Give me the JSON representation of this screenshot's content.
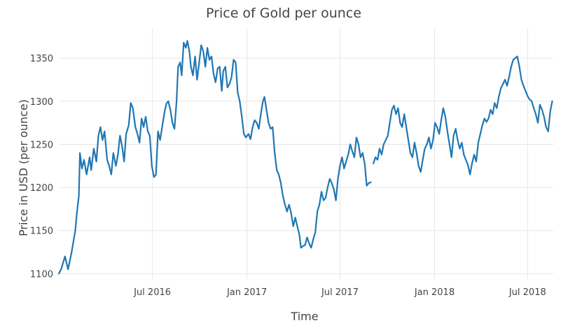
{
  "chart_data": {
    "type": "line",
    "title": "Price of Gold per ounce",
    "xlabel": "Time",
    "ylabel": "Price in USD (per ounce)",
    "xlim": [
      "2016-01-01",
      "2018-08-20"
    ],
    "ylim": [
      1093,
      1385
    ],
    "grid": true,
    "legend": "none",
    "x_ticks": [
      {
        "date": "2016-07-01",
        "label": "Jul 2016"
      },
      {
        "date": "2017-01-01",
        "label": "Jan 2017"
      },
      {
        "date": "2017-07-01",
        "label": "Jul 2017"
      },
      {
        "date": "2018-01-01",
        "label": "Jan 2018"
      },
      {
        "date": "2018-07-01",
        "label": "Jul 2018"
      }
    ],
    "y_ticks": [
      1100,
      1150,
      1200,
      1250,
      1300,
      1350
    ],
    "series": [
      {
        "color": "#1f77b4",
        "points": [
          [
            "2016-01-01",
            1100
          ],
          [
            "2016-01-06",
            1106
          ],
          [
            "2016-01-13",
            1120
          ],
          [
            "2016-01-19",
            1105
          ],
          [
            "2016-01-26",
            1125
          ],
          [
            "2016-02-02",
            1150
          ],
          [
            "2016-02-05",
            1170
          ],
          [
            "2016-02-09",
            1190
          ],
          [
            "2016-02-11",
            1240
          ],
          [
            "2016-02-15",
            1222
          ],
          [
            "2016-02-19",
            1232
          ],
          [
            "2016-02-24",
            1215
          ],
          [
            "2016-03-01",
            1235
          ],
          [
            "2016-03-04",
            1220
          ],
          [
            "2016-03-09",
            1245
          ],
          [
            "2016-03-14",
            1230
          ],
          [
            "2016-03-18",
            1260
          ],
          [
            "2016-03-22",
            1270
          ],
          [
            "2016-03-26",
            1255
          ],
          [
            "2016-03-30",
            1265
          ],
          [
            "2016-04-04",
            1232
          ],
          [
            "2016-04-08",
            1225
          ],
          [
            "2016-04-12",
            1215
          ],
          [
            "2016-04-16",
            1240
          ],
          [
            "2016-04-21",
            1225
          ],
          [
            "2016-04-25",
            1238
          ],
          [
            "2016-04-29",
            1260
          ],
          [
            "2016-05-03",
            1248
          ],
          [
            "2016-05-07",
            1230
          ],
          [
            "2016-05-11",
            1262
          ],
          [
            "2016-05-16",
            1272
          ],
          [
            "2016-05-20",
            1298
          ],
          [
            "2016-05-24",
            1292
          ],
          [
            "2016-05-29",
            1270
          ],
          [
            "2016-06-02",
            1262
          ],
          [
            "2016-06-06",
            1252
          ],
          [
            "2016-06-10",
            1280
          ],
          [
            "2016-06-14",
            1270
          ],
          [
            "2016-06-18",
            1282
          ],
          [
            "2016-06-22",
            1265
          ],
          [
            "2016-06-26",
            1260
          ],
          [
            "2016-06-30",
            1225
          ],
          [
            "2016-07-04",
            1212
          ],
          [
            "2016-07-08",
            1215
          ],
          [
            "2016-07-12",
            1265
          ],
          [
            "2016-07-16",
            1255
          ],
          [
            "2016-07-20",
            1270
          ],
          [
            "2016-07-24",
            1285
          ],
          [
            "2016-07-28",
            1297
          ],
          [
            "2016-08-01",
            1300
          ],
          [
            "2016-08-05",
            1290
          ],
          [
            "2016-08-09",
            1275
          ],
          [
            "2016-08-13",
            1268
          ],
          [
            "2016-08-17",
            1300
          ],
          [
            "2016-08-20",
            1340
          ],
          [
            "2016-08-24",
            1345
          ],
          [
            "2016-08-27",
            1330
          ],
          [
            "2016-08-31",
            1368
          ],
          [
            "2016-09-04",
            1362
          ],
          [
            "2016-09-07",
            1370
          ],
          [
            "2016-09-11",
            1358
          ],
          [
            "2016-09-14",
            1340
          ],
          [
            "2016-09-18",
            1330
          ],
          [
            "2016-09-22",
            1352
          ],
          [
            "2016-09-26",
            1325
          ],
          [
            "2016-09-30",
            1345
          ],
          [
            "2016-10-04",
            1365
          ],
          [
            "2016-10-08",
            1358
          ],
          [
            "2016-10-12",
            1340
          ],
          [
            "2016-10-16",
            1362
          ],
          [
            "2016-10-20",
            1348
          ],
          [
            "2016-10-24",
            1352
          ],
          [
            "2016-10-28",
            1332
          ],
          [
            "2016-11-01",
            1322
          ],
          [
            "2016-11-05",
            1338
          ],
          [
            "2016-11-09",
            1340
          ],
          [
            "2016-11-13",
            1312
          ],
          [
            "2016-11-16",
            1335
          ],
          [
            "2016-11-20",
            1340
          ],
          [
            "2016-11-24",
            1316
          ],
          [
            "2016-11-28",
            1320
          ],
          [
            "2016-12-02",
            1328
          ],
          [
            "2016-12-06",
            1348
          ],
          [
            "2016-12-10",
            1345
          ],
          [
            "2016-12-14",
            1310
          ],
          [
            "2016-12-18",
            1300
          ],
          [
            "2016-12-22",
            1282
          ],
          [
            "2016-12-26",
            1262
          ],
          [
            "2016-12-30",
            1258
          ],
          [
            "2017-01-04",
            1262
          ],
          [
            "2017-01-08",
            1256
          ],
          [
            "2017-01-12",
            1270
          ],
          [
            "2017-01-16",
            1278
          ],
          [
            "2017-01-20",
            1275
          ],
          [
            "2017-01-24",
            1268
          ],
          [
            "2017-01-28",
            1285
          ],
          [
            "2017-02-01",
            1300
          ],
          [
            "2017-02-04",
            1305
          ],
          [
            "2017-02-08",
            1290
          ],
          [
            "2017-02-12",
            1275
          ],
          [
            "2017-02-16",
            1268
          ],
          [
            "2017-02-20",
            1270
          ],
          [
            "2017-02-24",
            1240
          ],
          [
            "2017-02-28",
            1220
          ],
          [
            "2017-03-04",
            1215
          ],
          [
            "2017-03-08",
            1205
          ],
          [
            "2017-03-12",
            1190
          ],
          [
            "2017-03-16",
            1180
          ],
          [
            "2017-03-20",
            1172
          ],
          [
            "2017-03-24",
            1180
          ],
          [
            "2017-03-28",
            1170
          ],
          [
            "2017-04-01",
            1155
          ],
          [
            "2017-04-05",
            1165
          ],
          [
            "2017-04-09",
            1155
          ],
          [
            "2017-04-13",
            1145
          ],
          [
            "2017-04-16",
            1130
          ],
          [
            "2017-04-20",
            1132
          ],
          [
            "2017-04-24",
            1133
          ],
          [
            "2017-04-28",
            1142
          ],
          [
            "2017-05-02",
            1135
          ],
          [
            "2017-05-06",
            1130
          ],
          [
            "2017-05-10",
            1140
          ],
          [
            "2017-05-14",
            1148
          ],
          [
            "2017-05-18",
            1172
          ],
          [
            "2017-05-22",
            1180
          ],
          [
            "2017-05-26",
            1195
          ],
          [
            "2017-05-30",
            1185
          ],
          [
            "2017-06-03",
            1188
          ],
          [
            "2017-06-07",
            1200
          ],
          [
            "2017-06-11",
            1210
          ],
          [
            "2017-06-15",
            1205
          ],
          [
            "2017-06-19",
            1198
          ],
          [
            "2017-06-23",
            1185
          ],
          [
            "2017-06-27",
            1210
          ],
          [
            "2017-07-01",
            1225
          ],
          [
            "2017-07-05",
            1235
          ],
          [
            "2017-07-09",
            1222
          ],
          [
            "2017-07-13",
            1230
          ],
          [
            "2017-07-17",
            1238
          ],
          [
            "2017-07-21",
            1250
          ],
          [
            "2017-07-25",
            1242
          ],
          [
            "2017-07-29",
            1235
          ],
          [
            "2017-08-02",
            1258
          ],
          [
            "2017-08-06",
            1250
          ],
          [
            "2017-08-10",
            1235
          ],
          [
            "2017-08-14",
            1240
          ],
          [
            "2017-08-18",
            1228
          ],
          [
            "2017-08-22",
            1202
          ],
          [
            "2017-08-26",
            1205
          ],
          [
            "2017-08-30",
            1206
          ],
          null,
          [
            "2017-09-04",
            1228
          ],
          [
            "2017-09-08",
            1235
          ],
          [
            "2017-09-12",
            1232
          ],
          [
            "2017-09-16",
            1245
          ],
          [
            "2017-09-20",
            1238
          ],
          [
            "2017-09-24",
            1250
          ],
          [
            "2017-09-28",
            1255
          ],
          [
            "2017-10-02",
            1260
          ],
          [
            "2017-10-06",
            1275
          ],
          [
            "2017-10-10",
            1290
          ],
          [
            "2017-10-14",
            1295
          ],
          [
            "2017-10-18",
            1285
          ],
          [
            "2017-10-22",
            1292
          ],
          [
            "2017-10-26",
            1275
          ],
          [
            "2017-10-30",
            1270
          ],
          [
            "2017-11-03",
            1285
          ],
          [
            "2017-11-07",
            1270
          ],
          [
            "2017-11-11",
            1255
          ],
          [
            "2017-11-15",
            1240
          ],
          [
            "2017-11-19",
            1235
          ],
          [
            "2017-11-23",
            1252
          ],
          [
            "2017-11-27",
            1240
          ],
          [
            "2017-12-01",
            1225
          ],
          [
            "2017-12-05",
            1218
          ],
          [
            "2017-12-09",
            1232
          ],
          [
            "2017-12-13",
            1245
          ],
          [
            "2017-12-17",
            1250
          ],
          [
            "2017-12-21",
            1258
          ],
          [
            "2017-12-25",
            1245
          ],
          [
            "2017-12-29",
            1255
          ],
          [
            "2018-01-02",
            1275
          ],
          [
            "2018-01-06",
            1270
          ],
          [
            "2018-01-10",
            1262
          ],
          [
            "2018-01-14",
            1278
          ],
          [
            "2018-01-18",
            1292
          ],
          [
            "2018-01-22",
            1282
          ],
          [
            "2018-01-26",
            1265
          ],
          [
            "2018-01-30",
            1250
          ],
          [
            "2018-02-03",
            1235
          ],
          [
            "2018-02-07",
            1260
          ],
          [
            "2018-02-11",
            1268
          ],
          [
            "2018-02-15",
            1255
          ],
          [
            "2018-02-19",
            1245
          ],
          [
            "2018-02-23",
            1252
          ],
          [
            "2018-02-27",
            1238
          ],
          [
            "2018-03-03",
            1232
          ],
          [
            "2018-03-07",
            1226
          ],
          [
            "2018-03-11",
            1215
          ],
          [
            "2018-03-15",
            1228
          ],
          [
            "2018-03-19",
            1238
          ],
          [
            "2018-03-23",
            1230
          ],
          [
            "2018-03-27",
            1252
          ],
          [
            "2018-03-31",
            1262
          ],
          [
            "2018-04-04",
            1272
          ],
          [
            "2018-04-08",
            1280
          ],
          [
            "2018-04-12",
            1276
          ],
          [
            "2018-04-16",
            1280
          ],
          [
            "2018-04-20",
            1290
          ],
          [
            "2018-04-24",
            1285
          ],
          [
            "2018-04-28",
            1298
          ],
          [
            "2018-05-02",
            1292
          ],
          [
            "2018-05-06",
            1305
          ],
          [
            "2018-05-10",
            1315
          ],
          [
            "2018-05-14",
            1320
          ],
          [
            "2018-05-18",
            1325
          ],
          [
            "2018-05-22",
            1318
          ],
          [
            "2018-05-26",
            1328
          ],
          [
            "2018-05-30",
            1340
          ],
          [
            "2018-06-03",
            1348
          ],
          [
            "2018-06-07",
            1350
          ],
          [
            "2018-06-11",
            1352
          ],
          [
            "2018-06-15",
            1340
          ],
          [
            "2018-06-19",
            1325
          ],
          [
            "2018-06-23",
            1318
          ],
          [
            "2018-06-27",
            1312
          ],
          [
            "2018-07-01",
            1306
          ],
          [
            "2018-07-05",
            1302
          ],
          [
            "2018-07-09",
            1300
          ],
          [
            "2018-07-13",
            1292
          ],
          [
            "2018-07-17",
            1285
          ],
          [
            "2018-07-21",
            1275
          ],
          [
            "2018-07-25",
            1296
          ],
          [
            "2018-07-29",
            1290
          ],
          [
            "2018-08-02",
            1282
          ],
          [
            "2018-08-06",
            1270
          ],
          [
            "2018-08-10",
            1265
          ],
          [
            "2018-08-14",
            1288
          ],
          [
            "2018-08-18",
            1300
          ]
        ]
      }
    ]
  }
}
